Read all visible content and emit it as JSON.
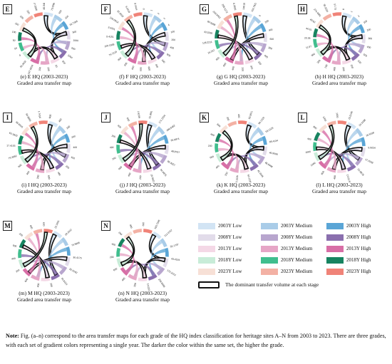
{
  "panels": [
    {
      "id": "E",
      "cap1": "(e)  E HQ  (2003-2023)",
      "cap2": "Graded area transfer map",
      "labels": [
        "45.5484",
        "70.9286",
        "100",
        "150",
        "62.7395",
        "500",
        "1000",
        "500",
        "1000",
        "500",
        "50",
        "100",
        "150",
        "247.6918",
        "35.3032",
        "0",
        "50",
        "50",
        "100",
        "150",
        "100",
        "150",
        "267.2886"
      ]
    },
    {
      "id": "F",
      "cap1": "(f)  F HQ  (2003-2023)",
      "cap2": "Graded area transfer map",
      "labels": [
        "0",
        "1",
        "2",
        "3",
        "4",
        "100",
        "200",
        "400",
        "600",
        "200",
        "400",
        "600",
        "600",
        "400",
        "200",
        "800",
        "79.7216",
        "100.1568",
        "9.4151",
        "3.5321",
        "134.0014",
        "32.3016",
        "6.3416",
        "39.1414"
      ]
    },
    {
      "id": "G",
      "cap1": "(g)  G HQ  (2003-2023)",
      "cap2": "Graded area transfer map",
      "labels": [
        "148.0846",
        "152.7922",
        "0",
        "200",
        "400",
        "600",
        "200",
        "400",
        "200",
        "400",
        "200",
        "400",
        "600",
        "800",
        "15.287",
        "126.2211",
        "43.5336",
        "83.5268",
        "233.5052",
        "285.5172",
        "38.3935"
      ]
    },
    {
      "id": "H",
      "cap1": "(h)  H HQ  (2003-2023)",
      "cap2": "Graded area transfer map",
      "labels": [
        "0",
        "1",
        "2",
        "100",
        "200",
        "300",
        "400",
        "500",
        "100",
        "200",
        "300",
        "400",
        "100",
        "200",
        "300",
        "11.87",
        "23.36",
        "44.61",
        "49.62",
        "274.4881",
        "30.1524",
        "57.73"
      ]
    },
    {
      "id": "I",
      "cap1": "(i)  I HQ  (2003-2023)",
      "cap2": "Graded area transfer map",
      "labels": [
        "600",
        "400",
        "200",
        "200",
        "400",
        "600",
        "200",
        "400",
        "600",
        "200",
        "400",
        "600",
        "79.3352",
        "17.4155",
        "60.1823",
        "66.8535",
        "84.8855",
        "81.7416"
      ]
    },
    {
      "id": "J",
      "cap1": "(j)  J HQ  (2003-2023)",
      "cap2": "Graded area transfer map",
      "labels": [
        "15.3692",
        "171.2334",
        "166.5452",
        "35.6874",
        "48.8757",
        "85.4327",
        "94.9875",
        "10.6621",
        "200",
        "400",
        "600",
        "200",
        "400",
        "200",
        "400",
        "600",
        "161.6239"
      ]
    },
    {
      "id": "K",
      "cap1": "(k)  K HQ  (2003-2023)",
      "cap2": "Graded area transfer map",
      "labels": [
        "93.3012",
        "94.1325",
        "53.1128",
        "85.4134",
        "46.9096",
        "46.9408",
        "42.2045",
        "62.1235",
        "23.1526",
        "200",
        "400",
        "600",
        "200",
        "400",
        "600",
        "200",
        "400"
      ]
    },
    {
      "id": "L",
      "cap1": "(l)  L HQ  (2003-2023)",
      "cap2": "Graded area transfer map",
      "labels": [
        "15.5136",
        "15.5188",
        "16.5338",
        "5.5034",
        "17.0158",
        "22.8878",
        "13.0176",
        "400",
        "800",
        "1200",
        "1600",
        "400",
        "800",
        "1200",
        "1600"
      ]
    },
    {
      "id": "M",
      "cap1": "(m)  M HQ  (2003-2023)",
      "cap2": "Graded area transfer map",
      "labels": [
        "22.1931",
        "19.1512",
        "74.5895",
        "36.4175",
        "52.5162",
        "55.8214",
        "200",
        "400",
        "600",
        "200",
        "400",
        "600",
        "200",
        "400",
        "600"
      ]
    },
    {
      "id": "N",
      "cap1": "(n)  N HQ  (2003-2023)",
      "cap2": "Graded area transfer map",
      "labels": [
        "193.7245",
        "112.0757",
        "52.1737",
        "43.4154",
        "170.2212",
        "209.6488",
        "14.0226",
        "200",
        "400",
        "600",
        "200",
        "400",
        "200",
        "400",
        "600"
      ]
    }
  ],
  "legend": {
    "rows": [
      {
        "low": "2003Y Low",
        "med": "2003Y Medium",
        "high": "2003Y High",
        "c": [
          "#d2e4f4",
          "#a9cce8",
          "#5aa5d6"
        ]
      },
      {
        "low": "2008Y Low",
        "med": "2008Y Medium",
        "high": "2008Y High",
        "c": [
          "#e2dcea",
          "#b8a6ce",
          "#8a6fae"
        ]
      },
      {
        "low": "2013Y Low",
        "med": "2013Y Medium",
        "high": "2013Y High",
        "c": [
          "#f4d8e6",
          "#e6a6c6",
          "#d86ea6"
        ]
      },
      {
        "low": "2018Y Low",
        "med": "2018Y Medium",
        "high": "2018Y High",
        "c": [
          "#c8ecd8",
          "#40be8e",
          "#178360"
        ]
      },
      {
        "low": "2023Y Low",
        "med": "2023Y Medium",
        "high": "2023Y High",
        "c": [
          "#f7e0d6",
          "#f3b1a4",
          "#f08378"
        ]
      }
    ],
    "dominant": "The dominant transfer volume at each stage"
  },
  "note": {
    "lead": "Note:",
    "text": " Fig. (a–n) correspond to the area transfer maps for each grade of the HQ index classification for heritage sites A–N from 2003 to 2023. There are three grades, with each set of gradient colors representing a single year. The darker the color within the same set, the higher the grade."
  }
}
